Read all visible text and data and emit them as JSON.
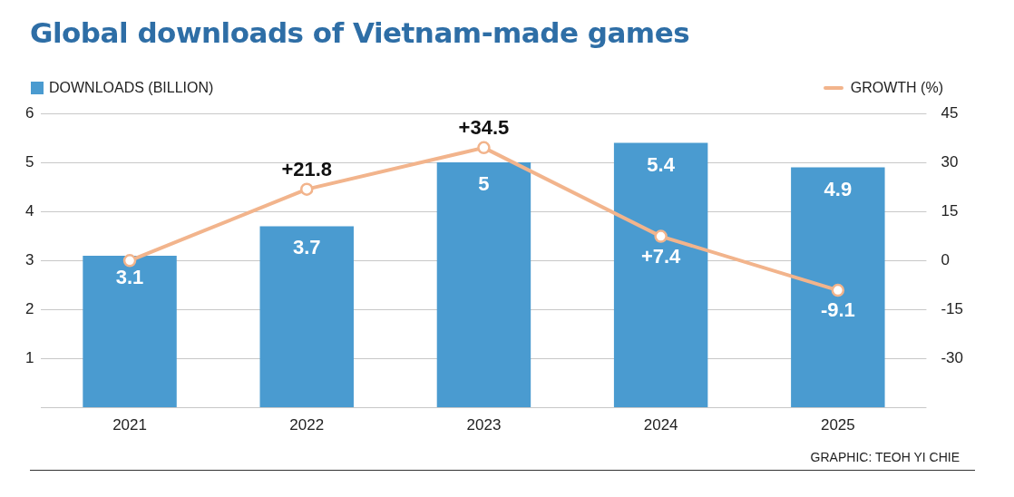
{
  "chart_data": {
    "type": "bar",
    "title": "Global downloads of Vietnam-made games",
    "categories": [
      "2021",
      "2022",
      "2023",
      "2024",
      "2025"
    ],
    "series": [
      {
        "name": "DOWNLOADS (BILLION)",
        "color": "#4a9bd0",
        "values": [
          3.1,
          3.7,
          5,
          5.4,
          4.9
        ],
        "value_labels": [
          "3.1",
          "3.7",
          "5",
          "5.4",
          "4.9"
        ]
      },
      {
        "name": "GROWTH (%)",
        "type": "line",
        "axis": "y2",
        "color": "#f2b48c",
        "values": [
          0,
          21.8,
          34.5,
          7.4,
          -9.1
        ],
        "value_labels": [
          null,
          "+21.8",
          "+34.5",
          "+7.4",
          "-9.1"
        ]
      }
    ],
    "ylim": [
      0,
      6
    ],
    "yticks": [
      {
        "value": 0,
        "label": null
      },
      1,
      2,
      3,
      4,
      5,
      6
    ],
    "y2lim": [
      -45,
      45
    ],
    "y2ticks": [
      -30,
      -15,
      0,
      15,
      30,
      45
    ],
    "grid": "y",
    "legend": "top",
    "marker": "circle",
    "annotations": [
      "GRAPHIC: TEOH YI CHIE"
    ]
  }
}
